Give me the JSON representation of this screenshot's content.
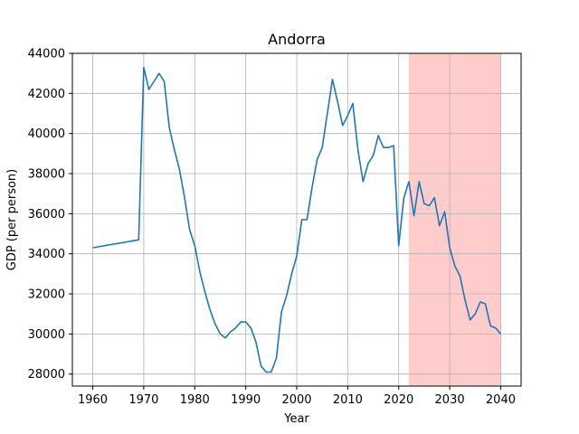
{
  "chart_data": {
    "type": "line",
    "title": "Andorra",
    "xlabel": "Year",
    "ylabel": "GDP (per person)",
    "xlim": [
      1956,
      2044
    ],
    "ylim": [
      27400,
      44000
    ],
    "xticks": [
      1960,
      1970,
      1980,
      1990,
      2000,
      2010,
      2020,
      2030,
      2040
    ],
    "yticks": [
      28000,
      30000,
      32000,
      34000,
      36000,
      38000,
      40000,
      42000,
      44000
    ],
    "grid": true,
    "line_color": "#1f77b4",
    "shaded_region": {
      "x_start": 2022,
      "x_end": 2040,
      "color": "#ffcccc"
    },
    "series": [
      {
        "x": [
          1960,
          1969,
          1970,
          1971,
          1972,
          1973,
          1974,
          1975,
          1976,
          1977,
          1978,
          1979,
          1980,
          1981,
          1982,
          1983,
          1984,
          1985,
          1986,
          1987,
          1988,
          1989,
          1990,
          1991,
          1992,
          1993,
          1994,
          1995,
          1996,
          1997,
          1998,
          1999,
          2000,
          2001,
          2002,
          2003,
          2004,
          2005,
          2006,
          2007,
          2008,
          2009,
          2010,
          2011,
          2012,
          2013,
          2014,
          2015,
          2016,
          2017,
          2018,
          2019,
          2020,
          2021,
          2022,
          2023,
          2024,
          2025,
          2026,
          2027,
          2028,
          2029,
          2030,
          2031,
          2032,
          2033,
          2034,
          2035,
          2036,
          2037,
          2038,
          2039,
          2040
        ],
        "y": [
          34300,
          34700,
          43300,
          42200,
          42600,
          43000,
          42600,
          40300,
          39200,
          38200,
          36800,
          35200,
          34400,
          33100,
          32100,
          31200,
          30500,
          30000,
          29800,
          30100,
          30300,
          30600,
          30600,
          30300,
          29600,
          28400,
          28100,
          28100,
          28800,
          31100,
          31900,
          33000,
          33900,
          35700,
          35700,
          37300,
          38700,
          39300,
          41000,
          42700,
          41600,
          40400,
          40900,
          41500,
          39200,
          37600,
          38500,
          38900,
          39900,
          39300,
          39300,
          39400,
          34400,
          36800,
          37600,
          35900,
          37600,
          36500,
          36400,
          36800,
          35400,
          36100,
          34300,
          33400,
          32900,
          31700,
          30700,
          31000,
          31600,
          31500,
          30400,
          30300,
          30000
        ]
      }
    ]
  }
}
